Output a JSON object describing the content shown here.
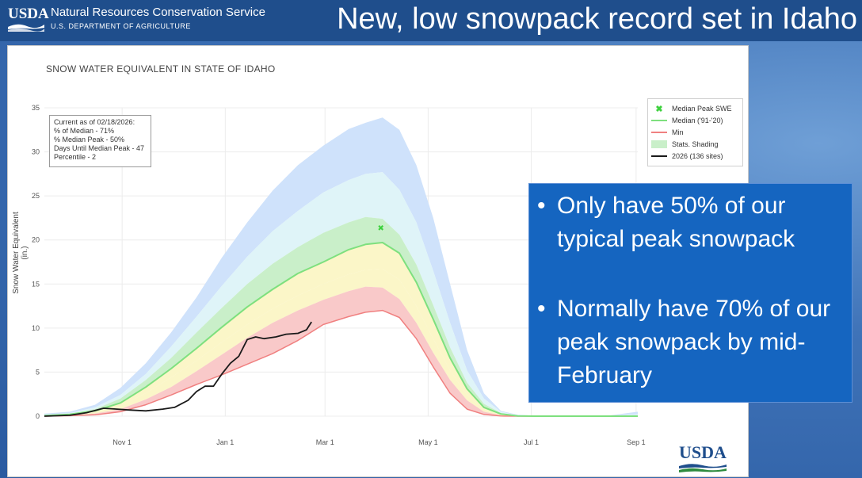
{
  "header": {
    "logo_text": "USDA",
    "agency": "Natural Resources Conservation Service",
    "department": "U.S. DEPARTMENT OF AGRICULTURE",
    "headline": "New, low snowpack record set in Idaho"
  },
  "info_box": {
    "lines": [
      "Current as of 02/18/2026:",
      "% of Median - 71%",
      "% Median Peak - 50%",
      "Days Until Median Peak - 47",
      "Percentile - 2"
    ]
  },
  "bullets": [
    "Only have 50% of our typical peak snowpack",
    "Normally have 70% of our peak snowpack by mid-February"
  ],
  "footer_logo": "USDA",
  "colors": {
    "header_bg": "#1f4e8c",
    "bullet_bg": "#1565c0",
    "median": "#7ee07e",
    "min": "#f08080",
    "current": "#1a1a1a",
    "outer_band": "#cfe2fb",
    "mid_band": "#dff4f8",
    "green_band": "#c9efc9",
    "yellow_band": "#fbf6c8",
    "red_band": "#f9c9c9",
    "peak_marker": "#3ed13e"
  },
  "chart_data": {
    "type": "area",
    "title": "SNOW WATER EQUIVALENT IN STATE OF IDAHO",
    "ylabel": "Snow Water Equivalent (in.)",
    "xlabel": "",
    "x_unit": "days since Oct 1",
    "xlim": [
      -15,
      336
    ],
    "ylim": [
      0,
      35
    ],
    "y_ticks": [
      0,
      5,
      10,
      15,
      20,
      25,
      30,
      35
    ],
    "x_ticks": [
      {
        "label": "Nov 1",
        "day": 31
      },
      {
        "label": "Jan 1",
        "day": 92
      },
      {
        "label": "Mar 1",
        "day": 151
      },
      {
        "label": "May 1",
        "day": 212
      },
      {
        "label": "Jul 1",
        "day": 273
      },
      {
        "label": "Sep 1",
        "day": 335
      }
    ],
    "legend": {
      "position": "top-right",
      "entries": [
        {
          "label": "Median Peak SWE",
          "kind": "marker",
          "color": "#3ed13e"
        },
        {
          "label": "Median ('91-'20)",
          "kind": "line",
          "color": "#7ee07e"
        },
        {
          "label": "Min",
          "kind": "line",
          "color": "#f08080"
        },
        {
          "label": "Stats. Shading",
          "kind": "band",
          "color": "#c9efc9"
        },
        {
          "label": "2026 (136 sites)",
          "kind": "line",
          "color": "#1a1a1a"
        }
      ]
    },
    "median_peak": {
      "day": 184,
      "value": 21.4
    },
    "series": [
      {
        "name": "Max",
        "x": [
          -15,
          0,
          15,
          30,
          45,
          60,
          75,
          90,
          105,
          120,
          135,
          150,
          165,
          175,
          185,
          195,
          205,
          215,
          225,
          235,
          245,
          255,
          265,
          275,
          285,
          300,
          320,
          336
        ],
        "values": [
          0.3,
          0.5,
          1.3,
          3.2,
          6.0,
          9.5,
          13.5,
          18.0,
          22.0,
          25.6,
          28.5,
          30.7,
          32.6,
          33.3,
          33.9,
          32.5,
          28.5,
          22.5,
          15.0,
          7.5,
          2.6,
          0.6,
          0.15,
          0.05,
          0.03,
          0.05,
          0.1,
          0.5
        ]
      },
      {
        "name": "P90",
        "x": [
          -15,
          0,
          15,
          30,
          45,
          60,
          75,
          90,
          105,
          120,
          135,
          150,
          165,
          175,
          185,
          195,
          205,
          215,
          225,
          235,
          245,
          255,
          265,
          275,
          285,
          300,
          320,
          336
        ],
        "values": [
          0.15,
          0.35,
          1.0,
          2.4,
          4.8,
          7.9,
          11.3,
          14.8,
          18.1,
          21.0,
          23.3,
          25.4,
          26.8,
          27.5,
          27.7,
          25.7,
          22.0,
          16.5,
          10.6,
          5.2,
          2.0,
          0.5,
          0.1,
          0.03,
          0.01,
          0.02,
          0.05,
          0.2
        ]
      },
      {
        "name": "P70",
        "x": [
          -15,
          0,
          15,
          30,
          45,
          60,
          75,
          90,
          105,
          120,
          135,
          150,
          165,
          175,
          185,
          195,
          205,
          215,
          225,
          235,
          245,
          255,
          265,
          275,
          285,
          300,
          320,
          336
        ],
        "values": [
          0.1,
          0.25,
          0.8,
          2.0,
          4.1,
          6.6,
          9.5,
          12.3,
          15.0,
          17.3,
          19.2,
          20.8,
          22.0,
          22.6,
          22.4,
          20.6,
          17.2,
          12.6,
          7.8,
          3.8,
          1.4,
          0.35,
          0.05,
          0.02,
          0.0,
          0.0,
          0.0,
          0.0
        ]
      },
      {
        "name": "Median ('91-'20)",
        "x": [
          -15,
          0,
          15,
          30,
          45,
          60,
          75,
          90,
          105,
          120,
          135,
          150,
          165,
          175,
          185,
          195,
          205,
          215,
          225,
          235,
          245,
          255,
          265,
          275,
          285,
          300,
          320,
          336
        ],
        "values": [
          0.05,
          0.2,
          0.6,
          1.5,
          3.3,
          5.4,
          7.7,
          10.1,
          12.4,
          14.4,
          16.2,
          17.5,
          18.9,
          19.5,
          19.7,
          18.5,
          15.2,
          11.0,
          6.6,
          3.1,
          1.0,
          0.25,
          0.03,
          0.0,
          0.0,
          0.0,
          0.0,
          0.0
        ]
      },
      {
        "name": "P30",
        "x": [
          -15,
          0,
          15,
          30,
          45,
          60,
          75,
          90,
          105,
          120,
          135,
          150,
          165,
          175,
          185,
          195,
          205,
          215,
          225,
          235,
          245,
          255,
          265,
          275,
          285,
          300,
          320,
          336
        ],
        "values": [
          0.04,
          0.15,
          0.45,
          1.2,
          2.6,
          4.4,
          6.3,
          8.4,
          10.4,
          12.2,
          13.7,
          15.0,
          16.1,
          16.6,
          16.7,
          15.5,
          12.5,
          8.8,
          5.2,
          2.4,
          0.8,
          0.15,
          0.02,
          0.0,
          0.0,
          0.0,
          0.0,
          0.0
        ]
      },
      {
        "name": "P10",
        "x": [
          -15,
          0,
          15,
          30,
          45,
          60,
          75,
          90,
          105,
          120,
          135,
          150,
          165,
          175,
          185,
          195,
          205,
          215,
          225,
          235,
          245,
          255,
          265,
          275,
          285,
          300,
          320,
          336
        ],
        "values": [
          0.02,
          0.1,
          0.3,
          0.8,
          1.9,
          3.3,
          5.1,
          7.0,
          8.9,
          10.6,
          12.0,
          13.2,
          14.2,
          14.7,
          14.6,
          13.3,
          10.6,
          7.2,
          4.1,
          1.8,
          0.5,
          0.1,
          0.0,
          0.0,
          0.0,
          0.0,
          0.0,
          0.0
        ]
      },
      {
        "name": "Min",
        "x": [
          -15,
          0,
          15,
          30,
          45,
          60,
          75,
          90,
          105,
          120,
          135,
          150,
          165,
          175,
          185,
          195,
          205,
          215,
          225,
          235,
          245,
          255,
          265,
          275,
          285,
          300,
          320,
          336
        ],
        "values": [
          0.0,
          0.05,
          0.15,
          0.5,
          1.3,
          2.4,
          3.6,
          4.7,
          5.9,
          7.1,
          8.6,
          10.4,
          11.3,
          11.8,
          12.0,
          11.2,
          8.8,
          5.6,
          2.6,
          0.8,
          0.2,
          0.02,
          0.0,
          0.0,
          0.0,
          0.0,
          0.0,
          0.0
        ]
      },
      {
        "name": "2026 (136 sites)",
        "x": [
          -15,
          0,
          10,
          20,
          28,
          35,
          45,
          55,
          62,
          70,
          75,
          80,
          85,
          90,
          95,
          100,
          105,
          110,
          115,
          122,
          128,
          135,
          140,
          143
        ],
        "values": [
          0.0,
          0.1,
          0.4,
          0.9,
          0.8,
          0.7,
          0.6,
          0.8,
          1.0,
          1.8,
          2.8,
          3.4,
          3.4,
          4.8,
          6.0,
          6.8,
          8.7,
          9.0,
          8.8,
          9.0,
          9.3,
          9.4,
          9.8,
          10.7
        ]
      }
    ]
  }
}
